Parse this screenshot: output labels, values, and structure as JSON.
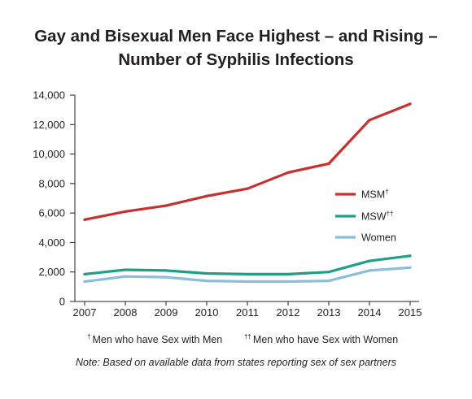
{
  "chart_data": {
    "type": "line",
    "title": [
      "Gay and Bisexual Men Face Highest – and Rising –",
      "Number of Syphilis Infections"
    ],
    "x": [
      2007,
      2008,
      2009,
      2010,
      2011,
      2012,
      2013,
      2014,
      2015
    ],
    "x_tick_labels": [
      "2007",
      "2008",
      "2009",
      "2010",
      "2011",
      "2012",
      "2013",
      "2014",
      "2015"
    ],
    "ylim": [
      0,
      14000
    ],
    "y_ticks": [
      0,
      2000,
      4000,
      6000,
      8000,
      10000,
      12000,
      14000
    ],
    "y_tick_labels": [
      "0",
      "2,000",
      "4,000",
      "6,000",
      "8,000",
      "10,000",
      "12,000",
      "14,000"
    ],
    "grid": false,
    "legend_position": "right",
    "series": [
      {
        "name": "MSM",
        "marker": "†",
        "color": "#c8302f",
        "values": [
          5550,
          6100,
          6500,
          7150,
          7650,
          8750,
          9350,
          12300,
          13400
        ]
      },
      {
        "name": "MSW",
        "marker": "††",
        "color": "#1e9f86",
        "values": [
          1850,
          2150,
          2100,
          1900,
          1850,
          1850,
          2000,
          2750,
          3100
        ]
      },
      {
        "name": "Women",
        "marker": "",
        "color": "#8dbddd",
        "values": [
          1350,
          1700,
          1650,
          1400,
          1350,
          1350,
          1400,
          2100,
          2300
        ]
      }
    ],
    "footnotes": [
      {
        "marker": "†",
        "text": "Men who have Sex with Men"
      },
      {
        "marker": "††",
        "text": "Men who have Sex with Women"
      }
    ],
    "note": "Note: Based on available data from states reporting sex of sex partners"
  }
}
